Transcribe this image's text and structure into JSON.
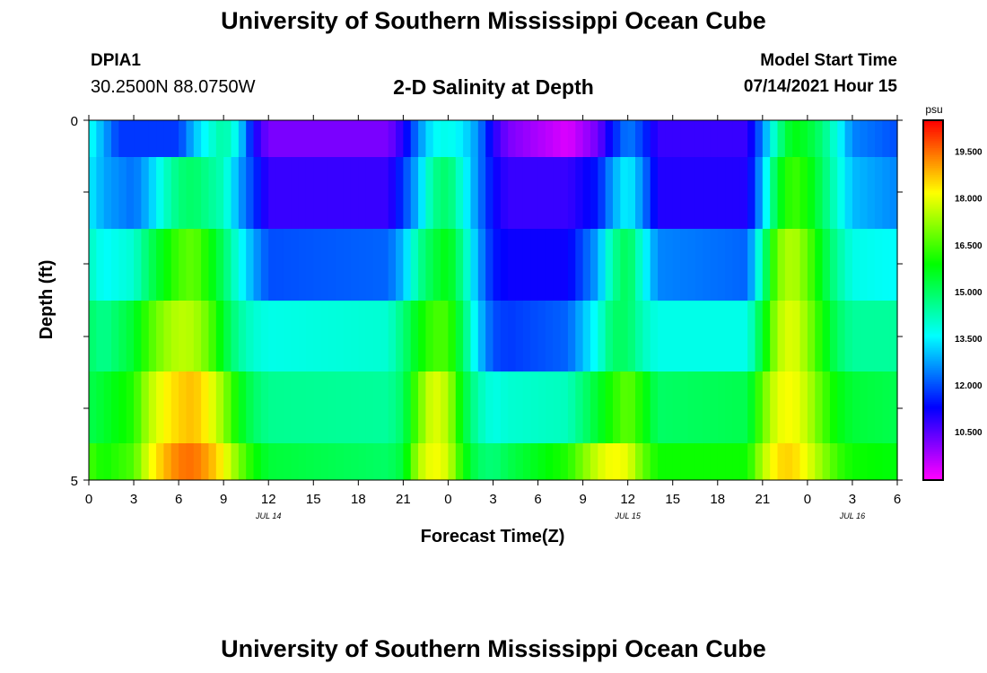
{
  "page": {
    "title": "University of Southern Mississippi Ocean Cube",
    "footer_title": "University of Southern Mississippi Ocean Cube",
    "station": "DPIA1",
    "coordinates": "30.2500N  88.0750W",
    "subtitle": "2-D Salinity at Depth",
    "model_start_label": "Model Start Time",
    "model_start_time": "07/14/2021 Hour 15"
  },
  "chart_data": {
    "type": "heatmap",
    "title": "2-D Salinity at Depth",
    "xlabel": "Forecast Time(Z)",
    "ylabel": "Depth (ft)",
    "x_tick_labels": [
      "0",
      "3",
      "6",
      "9",
      "12",
      "15",
      "18",
      "21",
      "0",
      "3",
      "6",
      "9",
      "12",
      "15",
      "18",
      "21",
      "0",
      "3",
      "6"
    ],
    "x_hours": [
      0,
      54
    ],
    "date_labels": [
      {
        "hour": 12,
        "label": "JUL 14"
      },
      {
        "hour": 36,
        "label": "JUL 15"
      },
      {
        "hour": 51,
        "label": "JUL 16"
      }
    ],
    "y_tick_labels": [
      "0",
      "5"
    ],
    "ylim": [
      0,
      5
    ],
    "colorbar": {
      "unit": "psu",
      "range": [
        9.0,
        20.5
      ],
      "tick_labels": [
        "19.500",
        "18.000",
        "16.500",
        "15.000",
        "13.500",
        "12.000",
        "10.500"
      ],
      "tick_values": [
        19.5,
        18.0,
        16.5,
        15.0,
        13.5,
        12.0,
        10.5
      ]
    },
    "layers": [
      {
        "depth_range": "0-1",
        "keyframes": [
          [
            0,
            13.8
          ],
          [
            1,
            12.8
          ],
          [
            2,
            11.8
          ],
          [
            6,
            11.8
          ],
          [
            7,
            13.0
          ],
          [
            8,
            13.8
          ],
          [
            9,
            14.5
          ],
          [
            10,
            13.5
          ],
          [
            11,
            11.2
          ],
          [
            12,
            10.2
          ],
          [
            20,
            10.2
          ],
          [
            21,
            11.0
          ],
          [
            22,
            12.5
          ],
          [
            23,
            13.6
          ],
          [
            24,
            13.8
          ],
          [
            25,
            13.4
          ],
          [
            26,
            12.6
          ],
          [
            27,
            11.0
          ],
          [
            28,
            10.2
          ],
          [
            32,
            9.3
          ],
          [
            34,
            10.3
          ],
          [
            35,
            11.5
          ],
          [
            36,
            12.5
          ],
          [
            37,
            11.8
          ],
          [
            38,
            10.8
          ],
          [
            44,
            10.8
          ],
          [
            45,
            12.5
          ],
          [
            46,
            14.5
          ],
          [
            47,
            15.8
          ],
          [
            48,
            15.5
          ],
          [
            49,
            14.8
          ],
          [
            50,
            13.8
          ],
          [
            51,
            12.5
          ],
          [
            54,
            12.0
          ]
        ]
      },
      {
        "depth_range": "1-2",
        "keyframes": [
          [
            0,
            13.5
          ],
          [
            1,
            12.8
          ],
          [
            3,
            12.3
          ],
          [
            4,
            13.0
          ],
          [
            5,
            14.0
          ],
          [
            6,
            14.8
          ],
          [
            7,
            15.0
          ],
          [
            8,
            14.6
          ],
          [
            9,
            14.2
          ],
          [
            10,
            12.8
          ],
          [
            11,
            11.8
          ],
          [
            12,
            10.8
          ],
          [
            20,
            10.8
          ],
          [
            21,
            11.8
          ],
          [
            22,
            13.0
          ],
          [
            23,
            14.6
          ],
          [
            24,
            15.0
          ],
          [
            25,
            13.8
          ],
          [
            26,
            12.5
          ],
          [
            27,
            11.3
          ],
          [
            28,
            10.8
          ],
          [
            32,
            10.8
          ],
          [
            34,
            11.5
          ],
          [
            35,
            12.8
          ],
          [
            36,
            13.6
          ],
          [
            37,
            12.5
          ],
          [
            38,
            11.0
          ],
          [
            44,
            11.0
          ],
          [
            45,
            13.0
          ],
          [
            46,
            15.5
          ],
          [
            47,
            16.5
          ],
          [
            48,
            16.0
          ],
          [
            49,
            15.0
          ],
          [
            50,
            14.0
          ],
          [
            51,
            13.0
          ],
          [
            54,
            12.5
          ]
        ]
      },
      {
        "depth_range": "2-3",
        "keyframes": [
          [
            0,
            14.2
          ],
          [
            1,
            13.6
          ],
          [
            3,
            14.0
          ],
          [
            4,
            15.0
          ],
          [
            5,
            15.8
          ],
          [
            6,
            16.5
          ],
          [
            7,
            16.8
          ],
          [
            8,
            16.0
          ],
          [
            9,
            15.0
          ],
          [
            10,
            13.8
          ],
          [
            11,
            12.8
          ],
          [
            12,
            12.0
          ],
          [
            20,
            12.2
          ],
          [
            21,
            13.0
          ],
          [
            22,
            14.5
          ],
          [
            23,
            15.3
          ],
          [
            24,
            15.8
          ],
          [
            25,
            14.5
          ],
          [
            26,
            12.8
          ],
          [
            27,
            11.5
          ],
          [
            28,
            11.2
          ],
          [
            32,
            11.2
          ],
          [
            34,
            12.8
          ],
          [
            35,
            14.5
          ],
          [
            36,
            15.2
          ],
          [
            37,
            13.8
          ],
          [
            38,
            12.5
          ],
          [
            44,
            12.2
          ],
          [
            45,
            14.5
          ],
          [
            46,
            17.0
          ],
          [
            47,
            17.6
          ],
          [
            48,
            16.8
          ],
          [
            49,
            15.5
          ],
          [
            50,
            14.5
          ],
          [
            51,
            13.8
          ],
          [
            54,
            13.6
          ]
        ]
      },
      {
        "depth_range": "3-4",
        "keyframes": [
          [
            0,
            15.0
          ],
          [
            1,
            14.6
          ],
          [
            3,
            15.5
          ],
          [
            4,
            16.5
          ],
          [
            5,
            17.2
          ],
          [
            6,
            17.6
          ],
          [
            7,
            17.5
          ],
          [
            8,
            16.8
          ],
          [
            9,
            15.5
          ],
          [
            10,
            14.5
          ],
          [
            11,
            14.0
          ],
          [
            12,
            13.8
          ],
          [
            20,
            14.0
          ],
          [
            21,
            14.8
          ],
          [
            22,
            15.8
          ],
          [
            23,
            16.5
          ],
          [
            24,
            16.5
          ],
          [
            25,
            15.0
          ],
          [
            26,
            13.2
          ],
          [
            27,
            12.0
          ],
          [
            28,
            11.8
          ],
          [
            32,
            12.2
          ],
          [
            34,
            13.8
          ],
          [
            35,
            15.0
          ],
          [
            36,
            15.0
          ],
          [
            37,
            14.2
          ],
          [
            38,
            13.8
          ],
          [
            44,
            13.8
          ],
          [
            45,
            15.5
          ],
          [
            46,
            17.5
          ],
          [
            47,
            18.0
          ],
          [
            48,
            17.2
          ],
          [
            49,
            16.0
          ],
          [
            50,
            15.0
          ],
          [
            51,
            14.5
          ],
          [
            54,
            14.5
          ]
        ]
      },
      {
        "depth_range": "4-5",
        "keyframes": [
          [
            0,
            15.2
          ],
          [
            1,
            15.5
          ],
          [
            3,
            16.2
          ],
          [
            4,
            17.5
          ],
          [
            5,
            18.2
          ],
          [
            6,
            18.6
          ],
          [
            7,
            18.8
          ],
          [
            8,
            18.2
          ],
          [
            9,
            17.2
          ],
          [
            10,
            15.8
          ],
          [
            11,
            15.0
          ],
          [
            12,
            14.6
          ],
          [
            20,
            14.5
          ],
          [
            21,
            15.0
          ],
          [
            22,
            16.8
          ],
          [
            23,
            18.0
          ],
          [
            24,
            17.5
          ],
          [
            25,
            15.5
          ],
          [
            26,
            14.3
          ],
          [
            27,
            13.8
          ],
          [
            28,
            14.0
          ],
          [
            32,
            14.2
          ],
          [
            34,
            15.5
          ],
          [
            35,
            16.2
          ],
          [
            36,
            16.8
          ],
          [
            37,
            16.0
          ],
          [
            38,
            15.0
          ],
          [
            44,
            15.2
          ],
          [
            45,
            16.8
          ],
          [
            46,
            18.0
          ],
          [
            47,
            18.2
          ],
          [
            48,
            17.6
          ],
          [
            49,
            16.6
          ],
          [
            50,
            15.8
          ],
          [
            51,
            15.4
          ],
          [
            54,
            15.2
          ]
        ]
      },
      {
        "depth_range": "5",
        "keyframes": [
          [
            0,
            16.5
          ],
          [
            1,
            16.0
          ],
          [
            3,
            16.6
          ],
          [
            4,
            18.0
          ],
          [
            5,
            18.8
          ],
          [
            6,
            19.4
          ],
          [
            7,
            19.5
          ],
          [
            8,
            19.0
          ],
          [
            9,
            18.2
          ],
          [
            10,
            17.0
          ],
          [
            11,
            16.0
          ],
          [
            12,
            15.4
          ],
          [
            20,
            15.0
          ],
          [
            21,
            15.4
          ],
          [
            22,
            17.5
          ],
          [
            23,
            18.2
          ],
          [
            24,
            17.8
          ],
          [
            25,
            16.0
          ],
          [
            26,
            15.0
          ],
          [
            27,
            14.8
          ],
          [
            28,
            15.2
          ],
          [
            32,
            16.2
          ],
          [
            34,
            17.8
          ],
          [
            35,
            18.2
          ],
          [
            36,
            18.0
          ],
          [
            37,
            16.8
          ],
          [
            38,
            16.0
          ],
          [
            44,
            16.0
          ],
          [
            45,
            17.5
          ],
          [
            46,
            18.5
          ],
          [
            47,
            18.6
          ],
          [
            48,
            18.0
          ],
          [
            49,
            17.2
          ],
          [
            50,
            16.4
          ],
          [
            51,
            16.0
          ],
          [
            54,
            15.8
          ]
        ]
      }
    ]
  }
}
